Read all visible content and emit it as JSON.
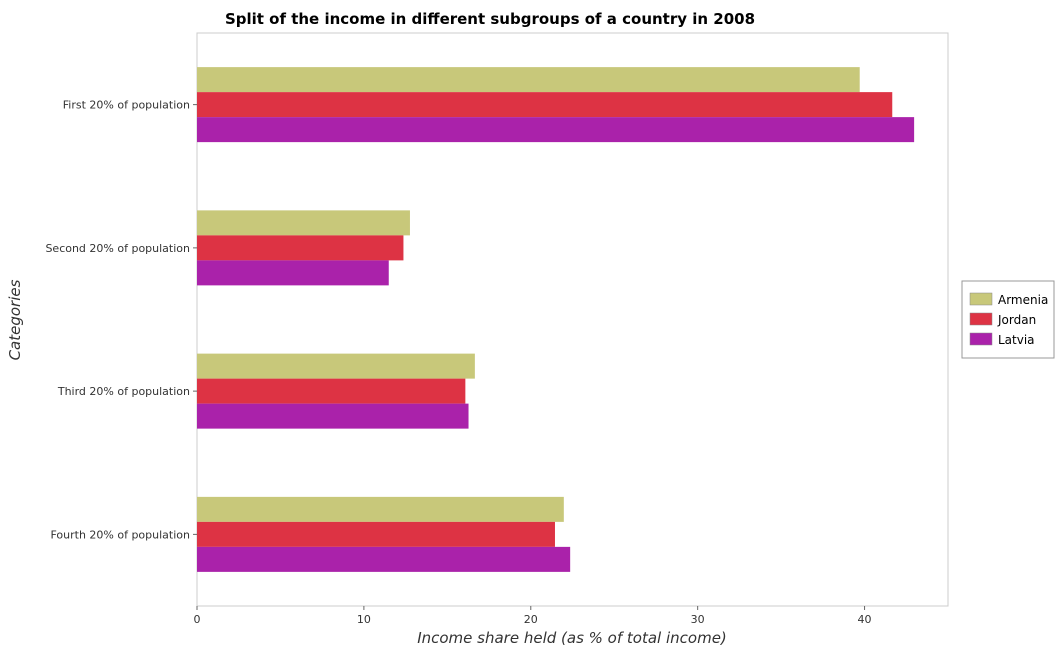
{
  "chart_data": {
    "type": "bar",
    "orientation": "horizontal",
    "title": "Split of the income in different subgroups of a country in 2008",
    "xlabel": "Income share held (as % of total income)",
    "ylabel": "Categories",
    "xlim": [
      0,
      45
    ],
    "xticks": [
      0,
      10,
      20,
      30,
      40
    ],
    "categories": [
      "First 20% of population",
      "Second 20% of population",
      "Third 20% of population",
      "Fourth 20% of population"
    ],
    "series": [
      {
        "name": "Armenia",
        "color": "#c8c87a",
        "values": [
          39.71,
          12.76,
          16.65,
          21.98
        ]
      },
      {
        "name": "Jordan",
        "color": "#dd3344",
        "values": [
          41.66,
          12.37,
          16.08,
          21.45
        ]
      },
      {
        "name": "Latvia",
        "color": "#aa22aa",
        "values": [
          42.97,
          11.49,
          16.27,
          22.36
        ]
      }
    ],
    "grid": false,
    "legend_position": "right"
  }
}
